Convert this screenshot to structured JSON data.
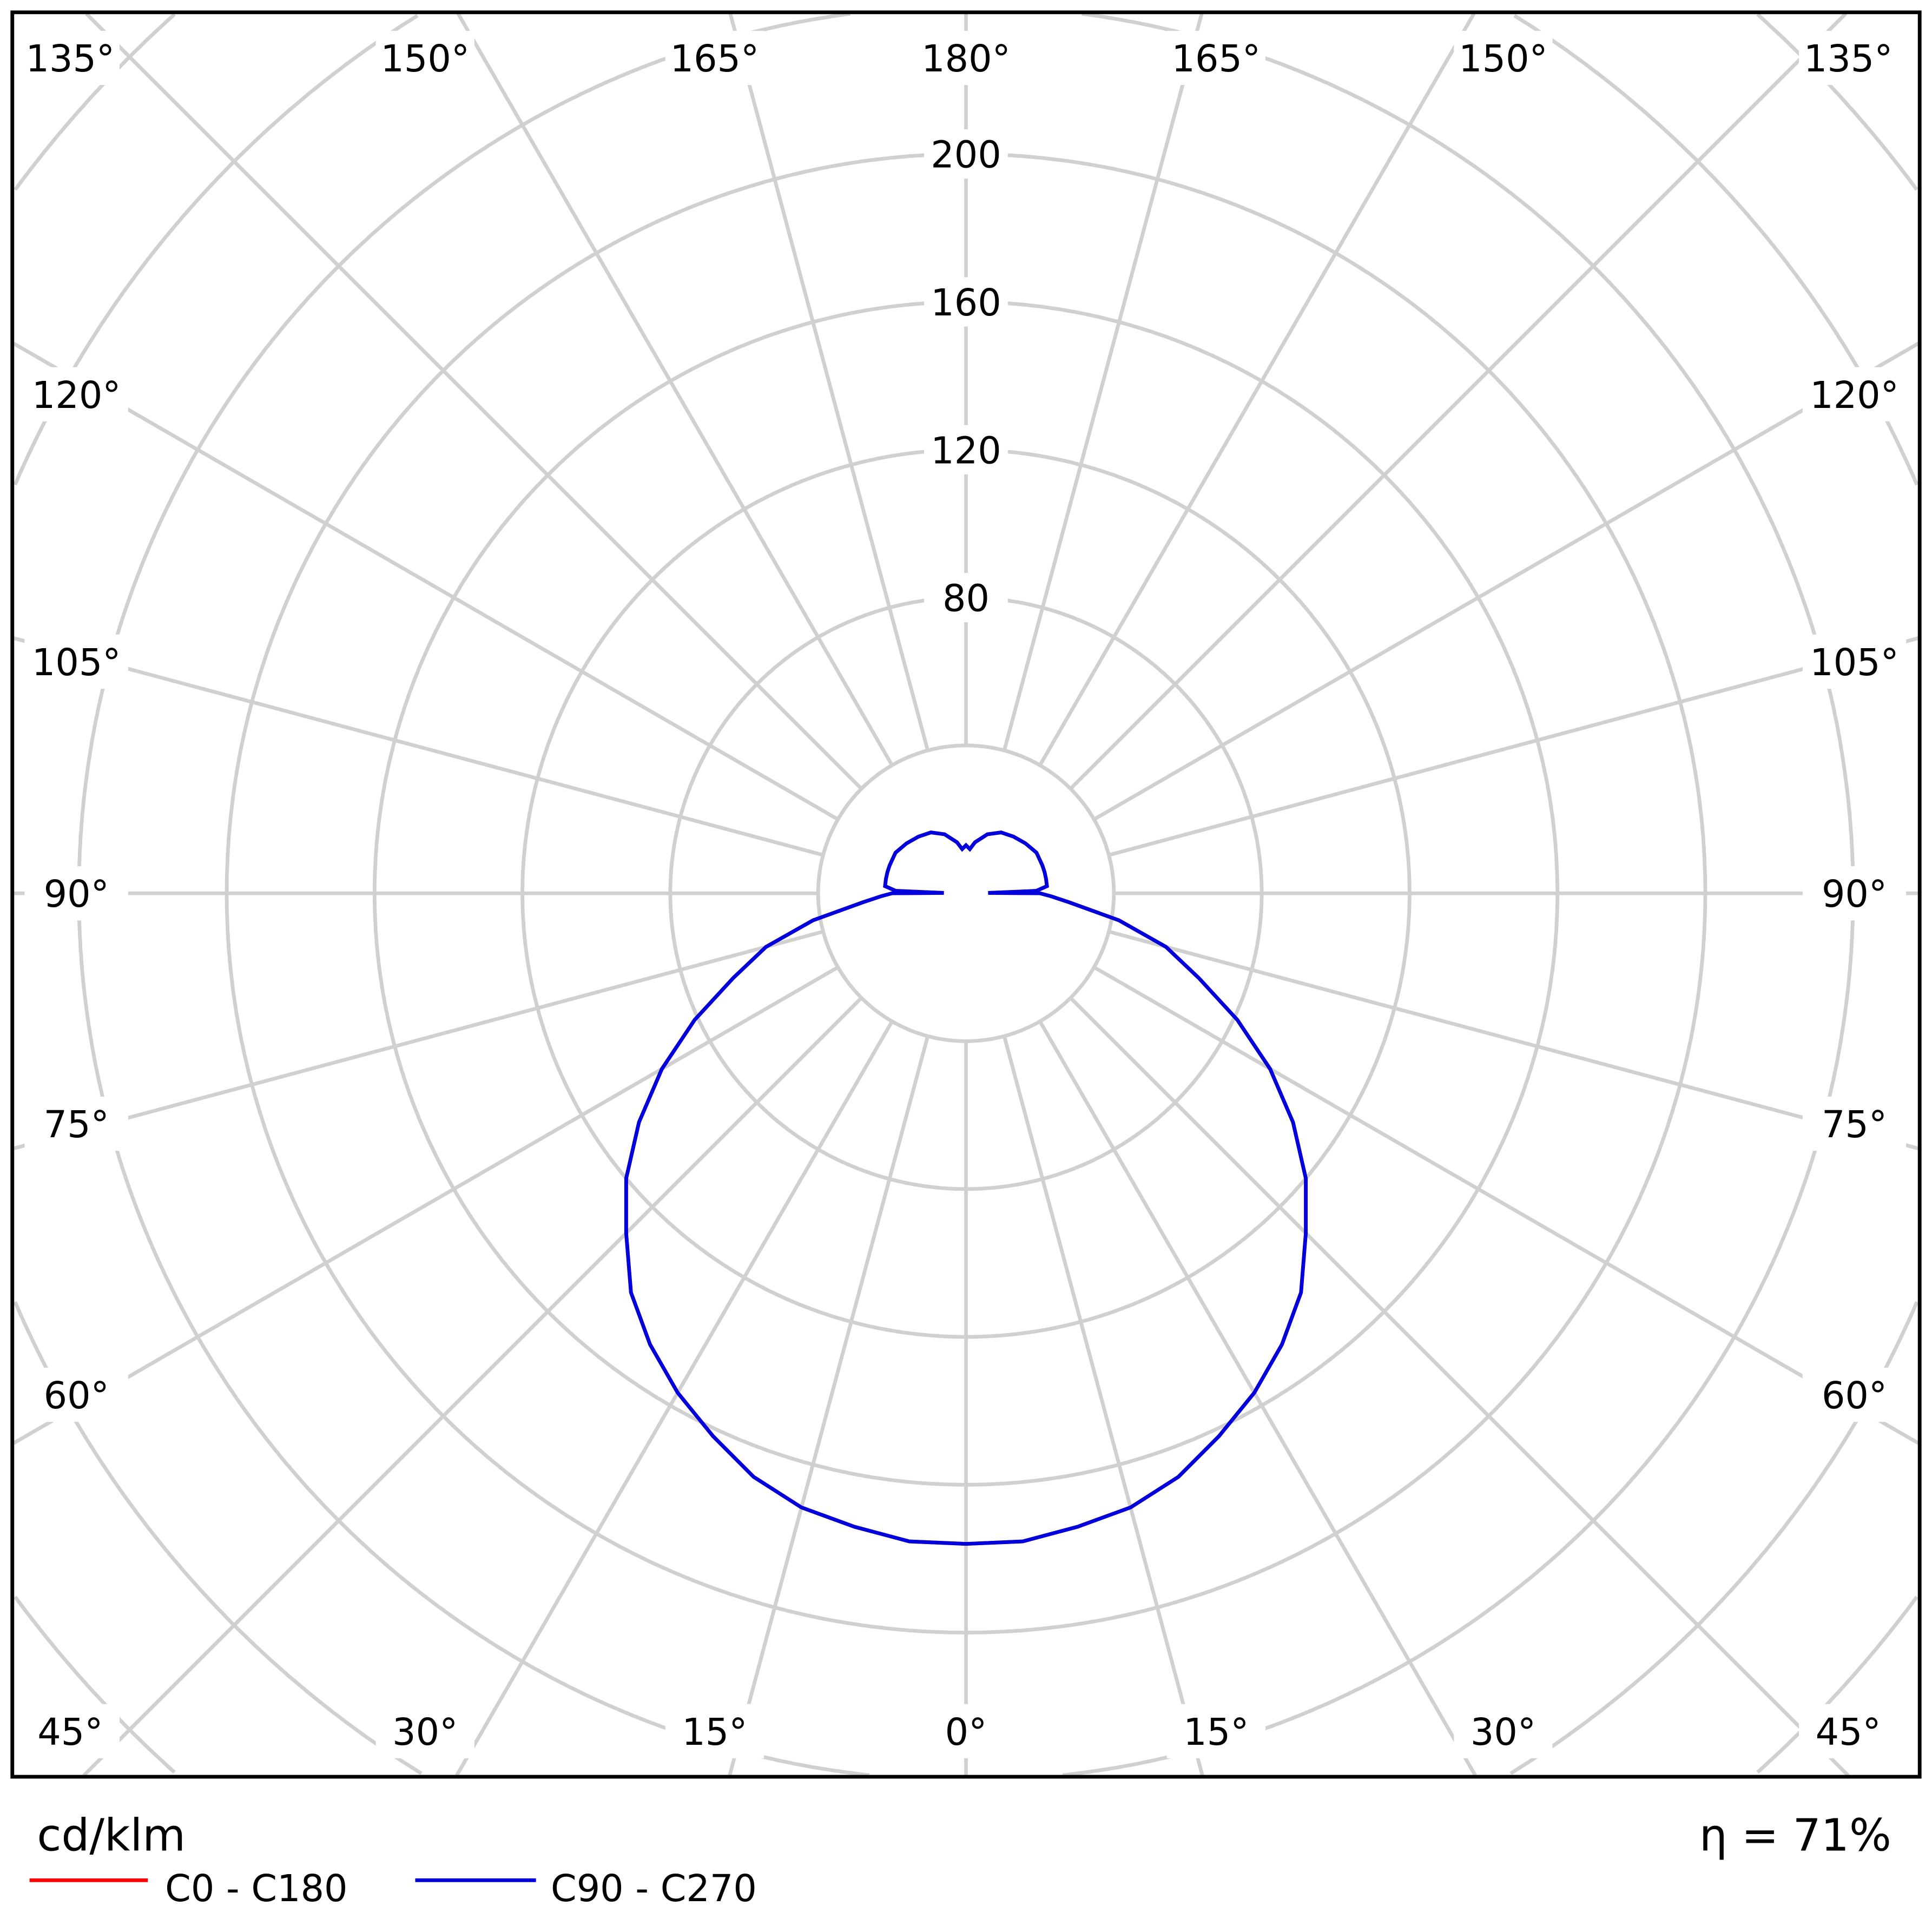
{
  "chart_data": {
    "type": "polar",
    "unit_label": "cd/klm",
    "efficiency_label": "η = 71%",
    "radial_ticks": [
      "80",
      "120",
      "160",
      "200"
    ],
    "radial_tick_values": [
      80,
      120,
      160,
      200
    ],
    "radial_step": 40,
    "angle_labels_top": [
      "135°",
      "150°",
      "165°",
      "180°",
      "165°",
      "150°",
      "135°"
    ],
    "angle_labels_left": [
      "120°",
      "105°",
      "90°",
      "75°",
      "60°"
    ],
    "angle_labels_right": [
      "120°",
      "105°",
      "90°",
      "75°",
      "60°"
    ],
    "angle_labels_bottom": [
      "45°",
      "30°",
      "15°",
      "0°",
      "15°",
      "30°",
      "45°"
    ],
    "grid": true,
    "gamma": [
      0,
      5,
      10,
      15,
      20,
      25,
      30,
      35,
      40,
      45,
      50,
      55,
      60,
      65,
      70,
      75,
      80,
      85,
      88,
      90,
      91,
      92,
      95,
      100,
      105,
      110,
      120,
      130,
      140,
      150,
      160,
      170,
      175,
      180
    ],
    "series": [
      {
        "name": "C0 - C180",
        "color": "#ff0000",
        "values": [
          176,
          176,
          174,
          172,
          168,
          162,
          156,
          149,
          141,
          130,
          120,
          108,
          95,
          81,
          67,
          56,
          42,
          28,
          23,
          20,
          6,
          19,
          22,
          22,
          22,
          22,
          22,
          21,
          20,
          19,
          17,
          14,
          12,
          13
        ]
      },
      {
        "name": "C90 - C270",
        "color": "#0000dd",
        "values": [
          176,
          176,
          174,
          172,
          168,
          162,
          156,
          149,
          141,
          130,
          120,
          108,
          95,
          81,
          67,
          56,
          42,
          28,
          23,
          20,
          6,
          19,
          22,
          22,
          22,
          22,
          22,
          21,
          20,
          19,
          17,
          14,
          12,
          13
        ]
      }
    ],
    "legend_placement": "bottom-left"
  }
}
